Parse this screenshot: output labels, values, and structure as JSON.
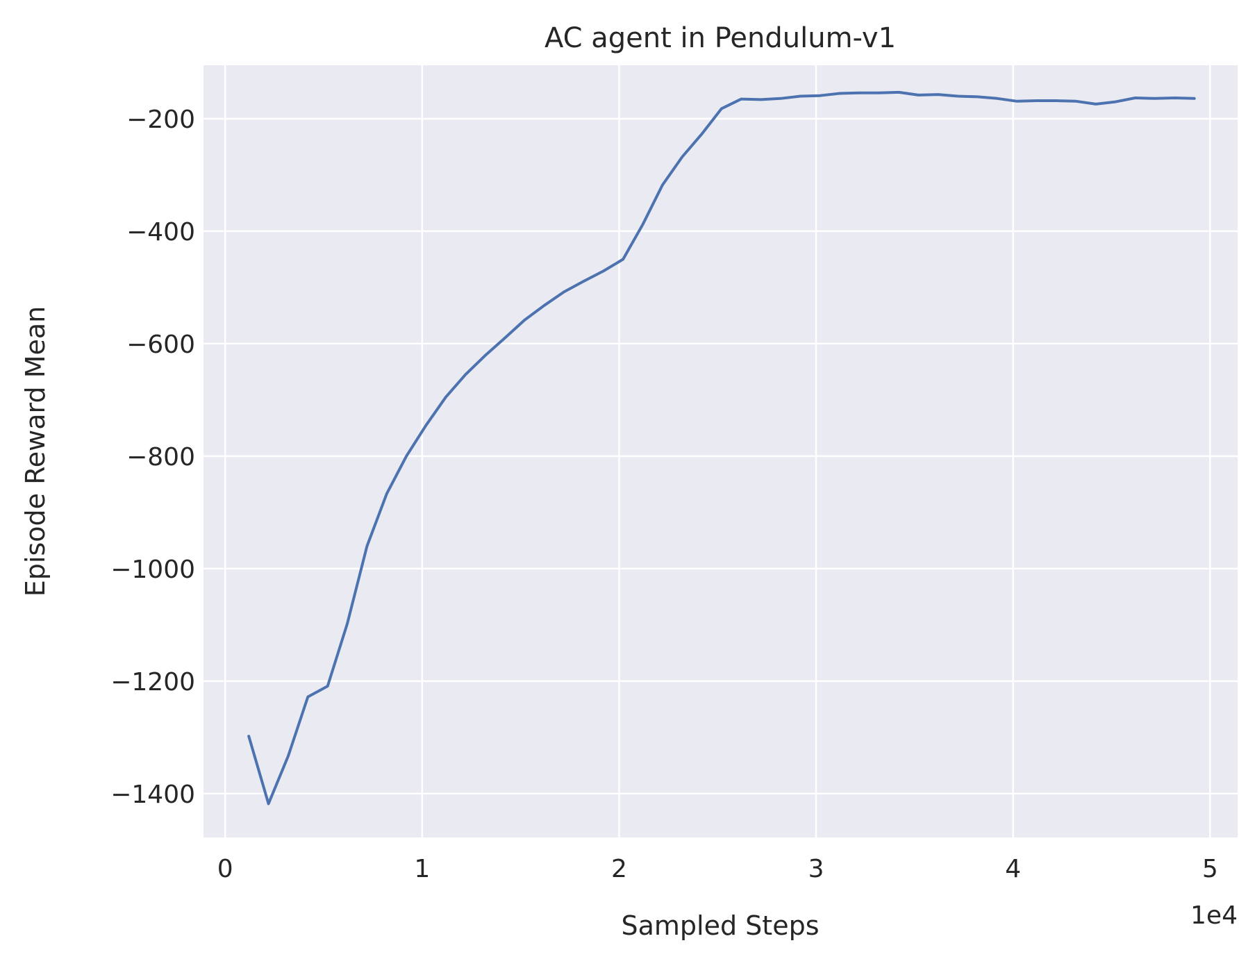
{
  "chart_data": {
    "type": "line",
    "title": "AC agent in Pendulum-v1",
    "xlabel": "Sampled Steps",
    "ylabel": "Episode Reward Mean",
    "x_offset_label": "1e4",
    "xlim": [
      -0.11,
      5.14
    ],
    "ylim": [
      -1478,
      -105
    ],
    "x_ticks": [
      0,
      1,
      2,
      3,
      4,
      5
    ],
    "x_tick_labels": [
      "0",
      "1",
      "2",
      "3",
      "4",
      "5"
    ],
    "y_ticks": [
      -200,
      -400,
      -600,
      -800,
      -1000,
      -1200,
      -1400
    ],
    "y_tick_labels": [
      "−200",
      "−400",
      "−600",
      "−800",
      "−1000",
      "−1200",
      "−1400"
    ],
    "grid": true,
    "background_color": "#eaeaf2",
    "series": [
      {
        "color": "#4c72b0",
        "x": [
          0.12,
          0.22,
          0.32,
          0.42,
          0.52,
          0.62,
          0.72,
          0.82,
          0.92,
          1.02,
          1.12,
          1.22,
          1.32,
          1.42,
          1.52,
          1.62,
          1.72,
          1.82,
          1.92,
          2.02,
          2.12,
          2.22,
          2.32,
          2.42,
          2.52,
          2.62,
          2.72,
          2.82,
          2.92,
          3.02,
          3.12,
          3.22,
          3.32,
          3.42,
          3.52,
          3.62,
          3.72,
          3.82,
          3.92,
          4.02,
          4.12,
          4.22,
          4.32,
          4.42,
          4.52,
          4.62,
          4.72,
          4.82,
          4.92
        ],
        "y": [
          -1298,
          -1418,
          -1333,
          -1228,
          -1209,
          -1098,
          -960,
          -867,
          -800,
          -745,
          -695,
          -655,
          -621,
          -590,
          -558,
          -532,
          -508,
          -489,
          -471,
          -450,
          -388,
          -318,
          -268,
          -227,
          -182,
          -165,
          -166,
          -164,
          -160,
          -159,
          -155,
          -154,
          -154,
          -153,
          -158,
          -157,
          -160,
          -161,
          -164,
          -169,
          -168,
          -168,
          -169,
          -174,
          -170,
          -163,
          -164,
          -163,
          -164
        ]
      }
    ]
  }
}
